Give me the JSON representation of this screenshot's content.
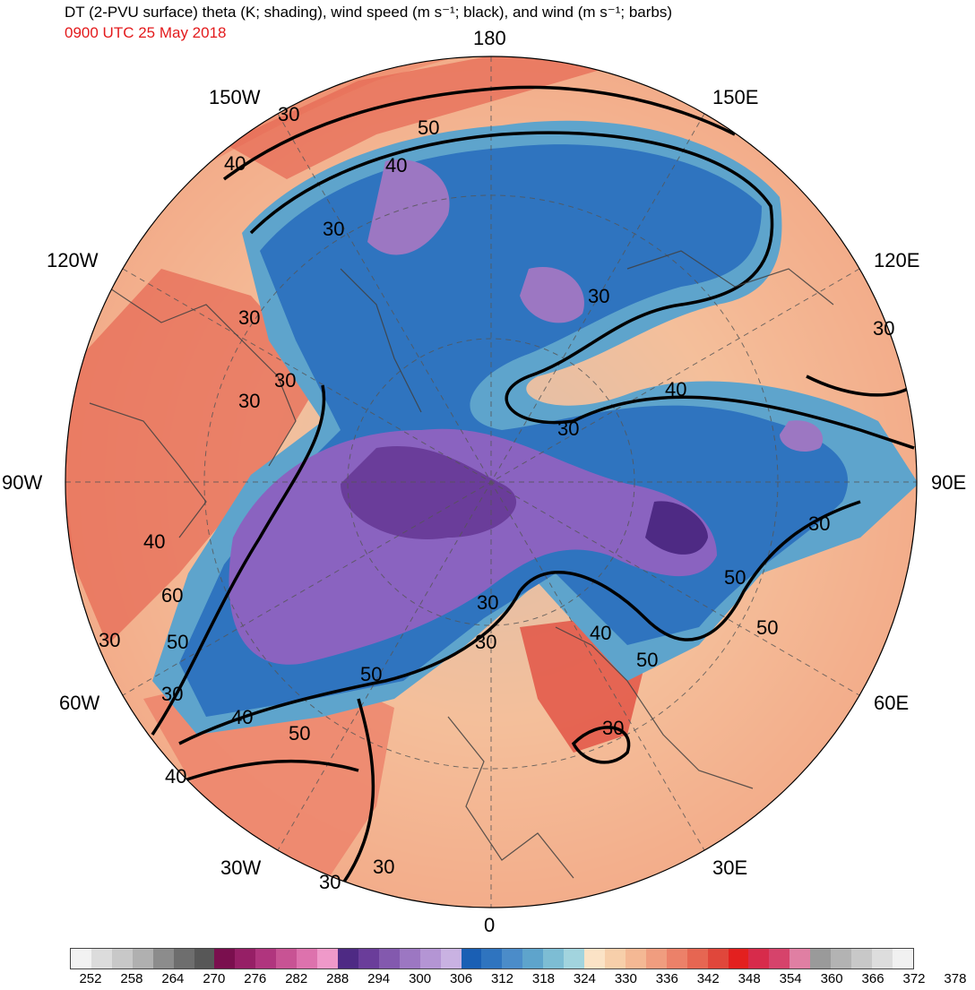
{
  "header": {
    "title": "DT (2-PVU surface) theta (K; shading), wind speed (m s⁻¹; black), and wind (m s⁻¹; barbs)",
    "valid_time": "0900 UTC 25 May 2018"
  },
  "longitude_labels": {
    "lon_180": "180",
    "lon_150w": "150W",
    "lon_150e": "150E",
    "lon_120w": "120W",
    "lon_120e": "120E",
    "lon_90w": "90W",
    "lon_90e": "90E",
    "lon_60w": "60W",
    "lon_60e": "60E",
    "lon_30w": "30W",
    "lon_30e": "30E",
    "lon_0": "0"
  },
  "contour_labels": [
    "30",
    "40",
    "50",
    "30",
    "30",
    "40",
    "30",
    "30",
    "40",
    "30",
    "30",
    "50",
    "50",
    "50",
    "30",
    "40",
    "50",
    "30",
    "40",
    "30",
    "40",
    "50",
    "30",
    "40",
    "50",
    "60",
    "30",
    "30",
    "30",
    "30",
    "30"
  ],
  "colorbar": {
    "tick_labels": [
      "252",
      "258",
      "264",
      "270",
      "276",
      "282",
      "288",
      "294",
      "300",
      "306",
      "312",
      "318",
      "324",
      "330",
      "336",
      "342",
      "348",
      "354",
      "360",
      "366",
      "372",
      "378"
    ],
    "colors": [
      "#f2f2f2",
      "#dcdcdc",
      "#c8c8c8",
      "#b0b0b0",
      "#8c8c8c",
      "#6e6e6e",
      "#575757",
      "#7a0f4e",
      "#961f66",
      "#b0357e",
      "#c85394",
      "#dd72ad",
      "#ef99c9",
      "#4e2a84",
      "#6a3d9a",
      "#8359ae",
      "#9c77c2",
      "#b495d4",
      "#c9b2e2",
      "#1a5fb4",
      "#2f74bf",
      "#4b8cc9",
      "#5ea4cc",
      "#7dbdd4",
      "#a2d4de",
      "#fbe3c6",
      "#f7cfaa",
      "#f4b894",
      "#f09d7f",
      "#ec8169",
      "#e66652",
      "#e0473b",
      "#e3201f",
      "#d72b4b",
      "#d6436b",
      "#e07fa3",
      "#9a9a9a",
      "#b3b3b3",
      "#c8c8c8",
      "#dddddd",
      "#f1f1f1"
    ]
  },
  "map_features": {
    "cold_core_color": "#8a63c0",
    "warm_rim_color": "#ec8169",
    "grid_line_color": "#555555"
  }
}
